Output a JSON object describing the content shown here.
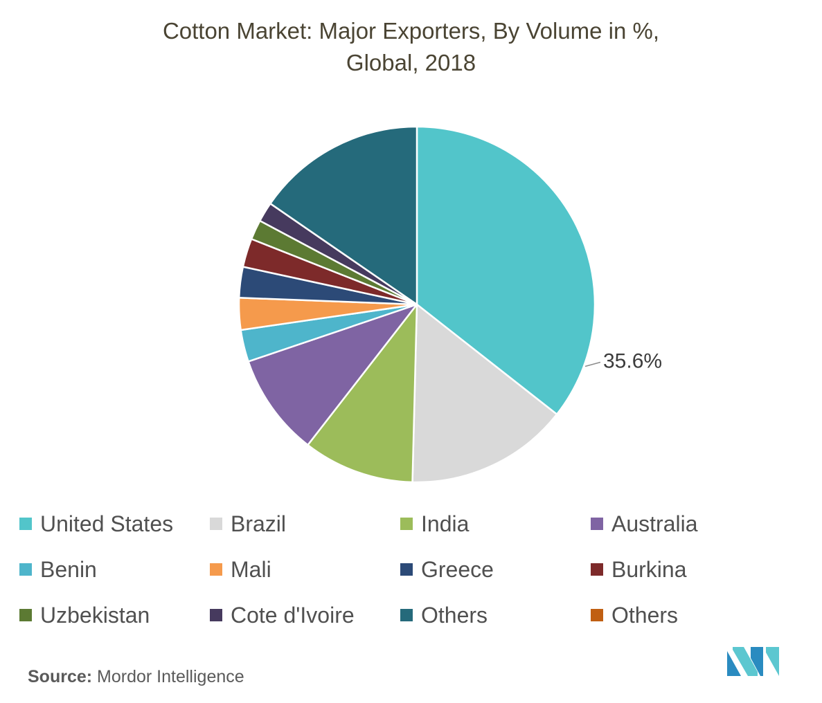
{
  "title_line1": "Cotton Market: Major Exporters, By Volume in %,",
  "title_line2": "Global, 2018",
  "source_label": "Source:",
  "source_value": "Mordor Intelligence",
  "logo": {
    "icon": "mordor-intelligence-logo",
    "colors": [
      "#2a8bc0",
      "#5cc7d0"
    ]
  },
  "chart_data": {
    "type": "pie",
    "categories": [
      "United States",
      "Brazil",
      "India",
      "Australia",
      "Benin",
      "Mali",
      "Greece",
      "Burkina",
      "Uzbekistan",
      "Cote d'Ivoire",
      "Others",
      "Others"
    ],
    "values": [
      35.6,
      14.8,
      10.1,
      9.3,
      2.9,
      2.9,
      2.8,
      2.6,
      1.8,
      1.8,
      15.4,
      0.0
    ],
    "colors": [
      "#52c5ca",
      "#d9d9d9",
      "#9cbc5a",
      "#7f64a3",
      "#4eb5cb",
      "#f59a4c",
      "#2c4a77",
      "#7d2a2a",
      "#5c7a33",
      "#463a5e",
      "#256a7b",
      "#c05f12"
    ],
    "data_labels": [
      {
        "category_index": 0,
        "text": "35.6%"
      }
    ],
    "start_angle_deg": 0,
    "direction": "clockwise",
    "legend_position": "bottom"
  }
}
